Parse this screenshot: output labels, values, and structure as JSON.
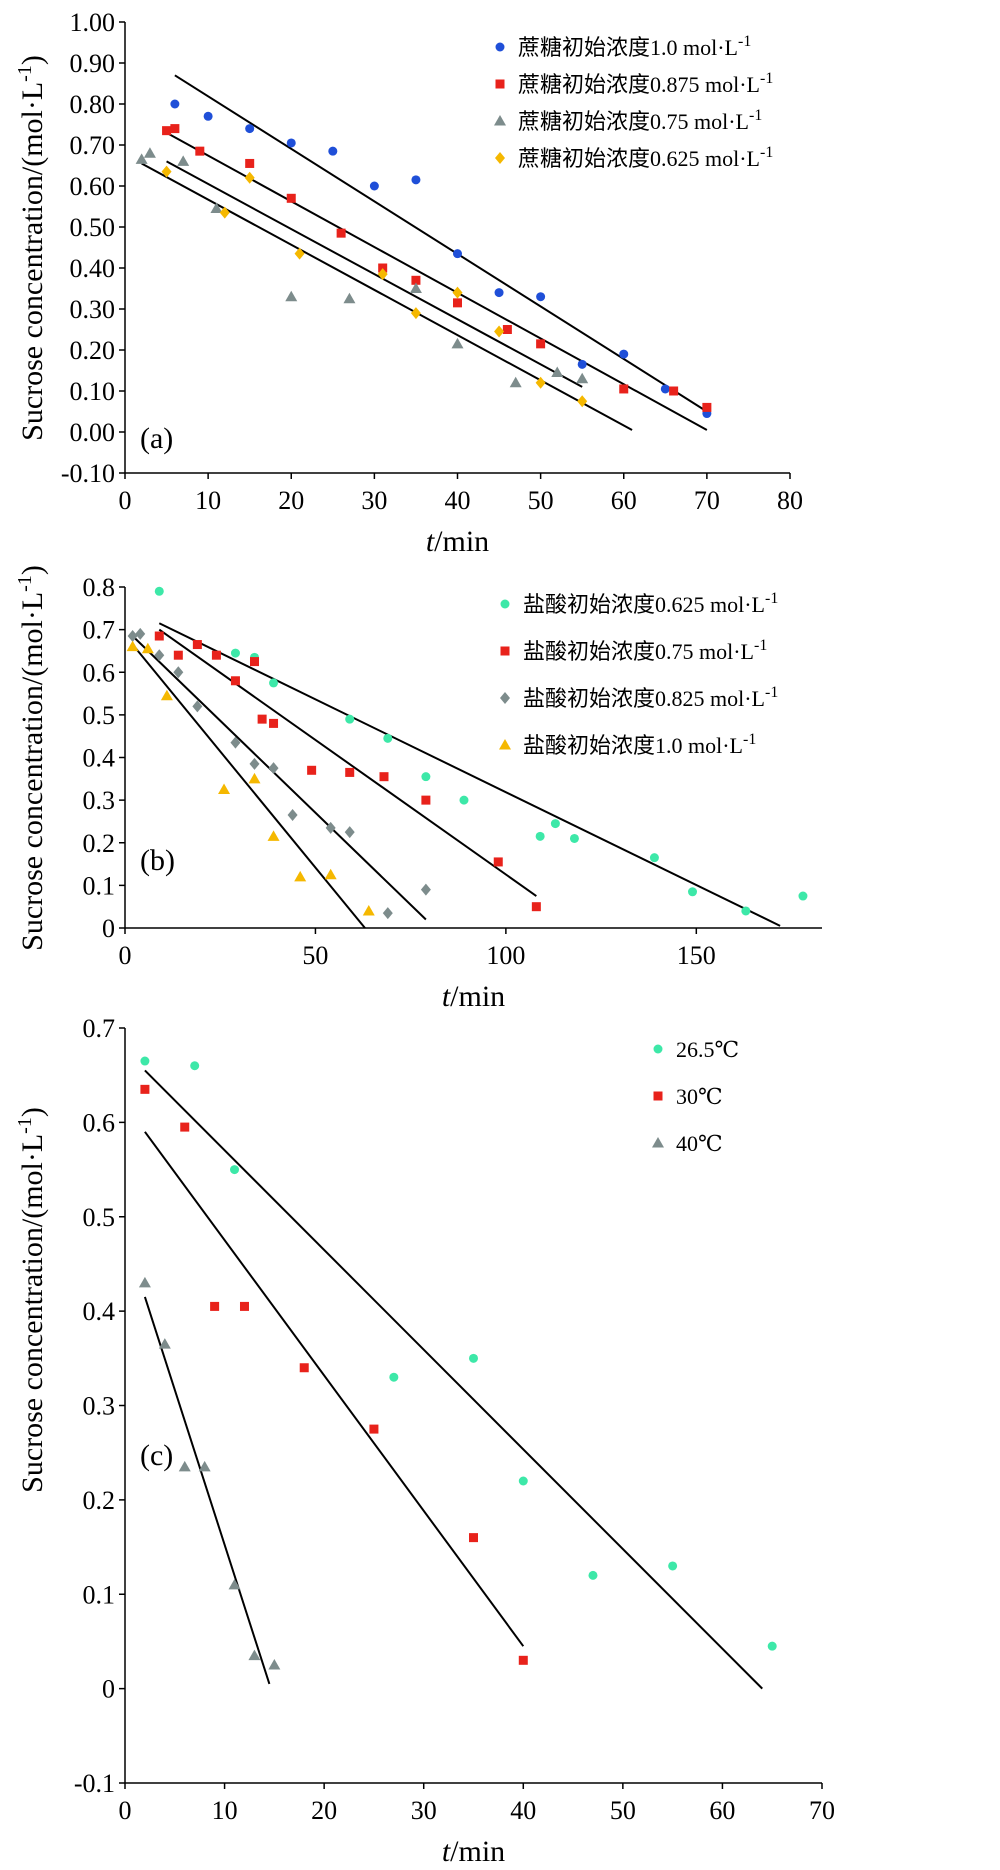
{
  "chart_data": [
    {
      "type": "scatter",
      "panel_label": "(a)",
      "ylabel": "Sucrose concentration/(mol·L",
      "ylabel_sup": "-1",
      "ylabel_close": ")",
      "xlabel_italic": "t",
      "xlabel_rest": "/min",
      "xlim": [
        0,
        80
      ],
      "ylim": [
        -0.1,
        1.0
      ],
      "xticks": [
        0,
        10,
        20,
        30,
        40,
        50,
        60,
        70,
        80
      ],
      "yticks": [
        -0.1,
        0.0,
        0.1,
        0.2,
        0.3,
        0.4,
        0.5,
        0.6,
        0.7,
        0.8,
        0.9,
        1.0
      ],
      "xtick_labels": [
        "0",
        "10",
        "20",
        "30",
        "40",
        "50",
        "60",
        "70",
        "80"
      ],
      "ytick_labels": [
        "-0.10",
        "0.00",
        "0.10",
        "0.20",
        "0.30",
        "0.40",
        "0.50",
        "0.60",
        "0.70",
        "0.80",
        "0.90",
        "1.00"
      ],
      "legend_position": "top-right",
      "series": [
        {
          "name": "蔗糖初始浓度1.0 mol·L",
          "name_sup": "-1",
          "marker": "circle",
          "color": "#1f4fd8",
          "x": [
            6,
            10,
            15,
            20,
            25,
            30,
            35,
            40,
            45,
            50,
            55,
            60,
            65,
            70
          ],
          "y": [
            0.8,
            0.77,
            0.74,
            0.705,
            0.685,
            0.6,
            0.615,
            0.435,
            0.34,
            0.33,
            0.165,
            0.19,
            0.105,
            0.045
          ],
          "fit": [
            [
              6,
              0.87
            ],
            [
              70,
              0.05
            ]
          ]
        },
        {
          "name": "蔗糖初始浓度0.875 mol·L",
          "name_sup": "-1",
          "marker": "square",
          "color": "#e8221b",
          "x": [
            5,
            6,
            9,
            15,
            20,
            26,
            31,
            35,
            40,
            46,
            50,
            60,
            66,
            70
          ],
          "y": [
            0.735,
            0.74,
            0.685,
            0.655,
            0.57,
            0.485,
            0.4,
            0.37,
            0.315,
            0.25,
            0.215,
            0.105,
            0.1,
            0.06
          ],
          "fit": [
            [
              5,
              0.73
            ],
            [
              70,
              0.005
            ]
          ]
        },
        {
          "name": "蔗糖初始浓度0.75 mol·L",
          "name_sup": "-1",
          "marker": "triangle",
          "color": "#7d8c8c",
          "x": [
            2,
            3,
            7,
            11,
            20,
            27,
            35,
            40,
            47,
            52,
            55
          ],
          "y": [
            0.665,
            0.68,
            0.66,
            0.545,
            0.33,
            0.325,
            0.35,
            0.215,
            0.12,
            0.145,
            0.13
          ],
          "fit": [
            [
              2,
              0.655
            ],
            [
              61,
              0.005
            ]
          ]
        },
        {
          "name": "蔗糖初始浓度0.625 mol·L",
          "name_sup": "-1",
          "marker": "diamond",
          "color": "#f5b800",
          "x": [
            5,
            12,
            15,
            21,
            31,
            35,
            40,
            45,
            50,
            55
          ],
          "y": [
            0.635,
            0.535,
            0.62,
            0.435,
            0.385,
            0.29,
            0.34,
            0.245,
            0.12,
            0.075
          ],
          "fit": [
            [
              5,
              0.66
            ],
            [
              55,
              0.11
            ]
          ]
        }
      ]
    },
    {
      "type": "scatter",
      "panel_label": "(b)",
      "ylabel": "Sucrose concentration/(mol·L",
      "ylabel_sup": "-1",
      "ylabel_close": ")",
      "xlabel_italic": "t",
      "xlabel_rest": "/min",
      "xlim": [
        0,
        183
      ],
      "ylim": [
        0,
        0.8
      ],
      "xticks": [
        0,
        50,
        100,
        150
      ],
      "yticks": [
        0,
        0.1,
        0.2,
        0.3,
        0.4,
        0.5,
        0.6,
        0.7,
        0.8
      ],
      "xtick_labels": [
        "0",
        "50",
        "100",
        "150"
      ],
      "ytick_labels": [
        "0",
        "0.1",
        "0.2",
        "0.3",
        "0.4",
        "0.5",
        "0.6",
        "0.7",
        "0.8"
      ],
      "legend_position": "top-right",
      "series": [
        {
          "name": "盐酸初始浓度0.625 mol·L",
          "name_sup": "-1",
          "marker": "circle",
          "color": "#3de8a8",
          "x": [
            9,
            29,
            34,
            39,
            59,
            69,
            79,
            89,
            109,
            113,
            118,
            139,
            149,
            163,
            178
          ],
          "y": [
            0.79,
            0.645,
            0.635,
            0.575,
            0.49,
            0.445,
            0.355,
            0.3,
            0.215,
            0.245,
            0.21,
            0.165,
            0.085,
            0.04,
            0.075
          ],
          "fit": [
            [
              9,
              0.715
            ],
            [
              172,
              0.005
            ]
          ]
        },
        {
          "name": "盐酸初始浓度0.75 mol·L",
          "name_sup": "-1",
          "marker": "square",
          "color": "#e8221b",
          "x": [
            9,
            14,
            19,
            24,
            29,
            34,
            36,
            39,
            49,
            59,
            68,
            79,
            98,
            108
          ],
          "y": [
            0.685,
            0.64,
            0.665,
            0.64,
            0.58,
            0.625,
            0.49,
            0.48,
            0.37,
            0.365,
            0.355,
            0.3,
            0.155,
            0.05
          ],
          "fit": [
            [
              9,
              0.7
            ],
            [
              108,
              0.075
            ]
          ]
        },
        {
          "name": "盐酸初始浓度0.825 mol·L",
          "name_sup": "-1",
          "marker": "diamond",
          "color": "#7d8c8c",
          "x": [
            2,
            4,
            9,
            14,
            19,
            29,
            34,
            39,
            44,
            54,
            59,
            69,
            79
          ],
          "y": [
            0.685,
            0.69,
            0.64,
            0.6,
            0.52,
            0.435,
            0.385,
            0.375,
            0.265,
            0.235,
            0.225,
            0.035,
            0.09
          ],
          "fit": [
            [
              2,
              0.685
            ],
            [
              79,
              0.02
            ]
          ]
        },
        {
          "name": "盐酸初始浓度1.0 mol·L",
          "name_sup": "-1",
          "marker": "triangle",
          "color": "#f5b800",
          "x": [
            2,
            6,
            11,
            26,
            34,
            39,
            46,
            54,
            64
          ],
          "y": [
            0.66,
            0.655,
            0.545,
            0.325,
            0.35,
            0.215,
            0.12,
            0.125,
            0.04
          ],
          "fit": [
            [
              2,
              0.665
            ],
            [
              63,
              0.0
            ]
          ]
        }
      ]
    },
    {
      "type": "scatter",
      "panel_label": "(c)",
      "ylabel": "Sucrose concentration/(mol·L",
      "ylabel_sup": "-1",
      "ylabel_close": ")",
      "xlabel_italic": "t",
      "xlabel_rest": "/min",
      "xlim": [
        0,
        70
      ],
      "ylim": [
        -0.1,
        0.7
      ],
      "xticks": [
        0,
        10,
        20,
        30,
        40,
        50,
        60,
        70
      ],
      "yticks": [
        -0.1,
        0,
        0.1,
        0.2,
        0.3,
        0.4,
        0.5,
        0.6,
        0.7
      ],
      "xtick_labels": [
        "0",
        "10",
        "20",
        "30",
        "40",
        "50",
        "60",
        "70"
      ],
      "ytick_labels": [
        "-0.1",
        "0",
        "0.1",
        "0.2",
        "0.3",
        "0.4",
        "0.5",
        "0.6",
        "0.7"
      ],
      "legend_position": "top-right",
      "series": [
        {
          "name": "26.5℃",
          "name_sup": "",
          "marker": "circle",
          "color": "#3de8a8",
          "x": [
            2,
            7,
            11,
            27,
            35,
            40,
            47,
            55,
            65
          ],
          "y": [
            0.665,
            0.66,
            0.55,
            0.33,
            0.35,
            0.22,
            0.12,
            0.13,
            0.045
          ],
          "fit": [
            [
              2,
              0.655
            ],
            [
              64,
              0.0
            ]
          ]
        },
        {
          "name": "30℃",
          "name_sup": "",
          "marker": "square",
          "color": "#e8221b",
          "x": [
            2,
            6,
            9,
            12,
            18,
            25,
            35,
            40
          ],
          "y": [
            0.635,
            0.595,
            0.405,
            0.405,
            0.34,
            0.275,
            0.16,
            0.03
          ],
          "fit": [
            [
              2,
              0.59
            ],
            [
              40,
              0.045
            ]
          ]
        },
        {
          "name": "40℃",
          "name_sup": "",
          "marker": "triangle",
          "color": "#7d8c8c",
          "x": [
            2,
            4,
            6,
            8,
            11,
            13,
            15
          ],
          "y": [
            0.43,
            0.365,
            0.235,
            0.235,
            0.11,
            0.035,
            0.025
          ],
          "fit": [
            [
              2,
              0.415
            ],
            [
              14.5,
              0.005
            ]
          ]
        }
      ]
    }
  ]
}
